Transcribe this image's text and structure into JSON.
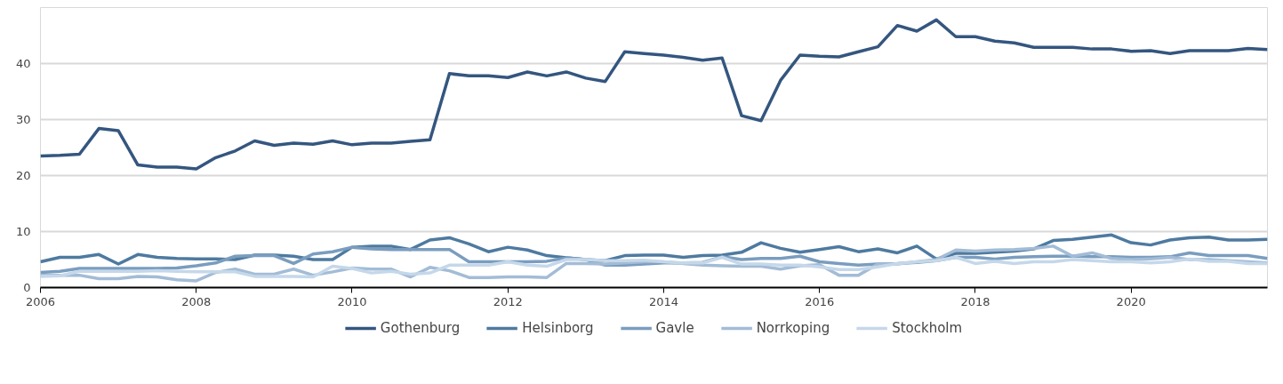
{
  "chart_data": {
    "type": "line",
    "x": [
      2006,
      2006.25,
      2006.5,
      2006.75,
      2007,
      2007.25,
      2007.5,
      2007.75,
      2008,
      2008.25,
      2008.5,
      2008.75,
      2009,
      2009.25,
      2009.5,
      2009.75,
      2010,
      2010.25,
      2010.5,
      2010.75,
      2011,
      2011.25,
      2011.5,
      2011.75,
      2012,
      2012.25,
      2012.5,
      2012.75,
      2013,
      2013.25,
      2013.5,
      2013.75,
      2014,
      2014.25,
      2014.5,
      2014.75,
      2015,
      2015.25,
      2015.5,
      2015.75,
      2016,
      2016.25,
      2016.5,
      2016.75,
      2017,
      2017.25,
      2017.5,
      2017.75,
      2018,
      2018.25,
      2018.5,
      2018.75,
      2019,
      2019.25,
      2019.5,
      2019.75,
      2020,
      2020.25,
      2020.5,
      2020.75,
      2021,
      2021.25,
      2021.5,
      2021.75
    ],
    "series": [
      {
        "name": "Gothenburg",
        "color": "#34567f",
        "values": [
          23.5,
          23.6,
          23.8,
          28.4,
          28.0,
          21.9,
          21.5,
          21.5,
          21.2,
          23.2,
          24.4,
          26.2,
          25.4,
          25.8,
          25.6,
          26.2,
          25.5,
          25.8,
          25.8,
          26.1,
          26.4,
          38.2,
          37.8,
          37.8,
          37.5,
          38.5,
          37.8,
          38.5,
          37.4,
          36.8,
          42.1,
          41.8,
          41.5,
          41.1,
          40.6,
          41.0,
          30.7,
          29.8,
          37.0,
          41.5,
          41.3,
          41.2,
          42.1,
          43.0,
          46.8,
          45.8,
          47.8,
          44.8,
          44.8,
          44.0,
          43.7,
          42.9,
          42.9,
          42.9,
          42.6,
          42.6,
          42.2,
          42.3,
          41.8,
          42.3,
          42.3,
          42.3,
          42.7,
          42.5
        ]
      },
      {
        "name": "Helsinborg",
        "color": "#4e7aa0",
        "values": [
          4.6,
          5.4,
          5.4,
          5.9,
          4.2,
          5.9,
          5.4,
          5.2,
          5.1,
          5.1,
          5.0,
          5.8,
          5.8,
          5.6,
          5.0,
          5.0,
          7.2,
          7.4,
          7.4,
          6.8,
          8.5,
          8.9,
          7.8,
          6.4,
          7.2,
          6.7,
          5.7,
          5.3,
          5.0,
          4.8,
          5.7,
          5.8,
          5.8,
          5.4,
          5.7,
          5.8,
          6.3,
          8.0,
          7.0,
          6.3,
          6.8,
          7.3,
          6.4,
          6.9,
          6.2,
          7.4,
          5.1,
          6.1,
          6.1,
          6.3,
          6.5,
          6.9,
          8.4,
          8.6,
          9.0,
          9.4,
          8.0,
          7.6,
          8.5,
          8.9,
          9.0,
          8.5,
          8.5,
          8.6
        ]
      },
      {
        "name": "Gavle",
        "color": "#7a9dbf",
        "values": [
          2.7,
          2.9,
          3.4,
          3.4,
          3.4,
          3.4,
          3.4,
          3.5,
          3.9,
          4.4,
          5.6,
          5.7,
          5.7,
          4.3,
          6.0,
          6.4,
          7.2,
          6.9,
          6.8,
          6.8,
          6.8,
          6.8,
          4.6,
          4.6,
          4.6,
          4.6,
          4.7,
          5.3,
          5.0,
          4.0,
          4.0,
          4.2,
          4.4,
          4.4,
          4.5,
          5.5,
          5.0,
          5.2,
          5.2,
          5.6,
          4.6,
          4.3,
          4.0,
          4.2,
          4.3,
          4.5,
          4.8,
          5.4,
          5.4,
          5.1,
          5.4,
          5.5,
          5.6,
          5.6,
          5.5,
          5.5,
          5.4,
          5.4,
          5.5,
          6.2,
          5.7,
          5.7,
          5.7,
          5.2
        ]
      },
      {
        "name": "Norrkoping",
        "color": "#a3bcd6",
        "values": [
          2.2,
          2.2,
          2.2,
          1.6,
          1.6,
          2.0,
          1.9,
          1.4,
          1.2,
          2.7,
          3.3,
          2.4,
          2.4,
          3.3,
          2.2,
          2.8,
          3.5,
          3.3,
          3.3,
          1.9,
          3.6,
          3.0,
          1.8,
          1.8,
          1.9,
          1.9,
          1.8,
          4.3,
          4.3,
          4.2,
          4.4,
          4.6,
          4.6,
          4.3,
          4.0,
          3.9,
          3.8,
          3.8,
          3.3,
          3.9,
          4.1,
          2.2,
          2.2,
          4.2,
          4.2,
          4.6,
          5.0,
          6.7,
          6.5,
          6.7,
          6.8,
          7.0,
          7.4,
          5.6,
          6.2,
          5.2,
          5.0,
          5.1,
          5.4,
          5.0,
          5.0,
          4.8,
          4.6,
          4.4
        ]
      },
      {
        "name": "Stockholm",
        "color": "#c5d8ea",
        "values": [
          2.0,
          2.1,
          2.9,
          2.9,
          2.9,
          2.9,
          3.0,
          2.9,
          2.8,
          2.8,
          2.8,
          2.0,
          2.0,
          2.0,
          1.9,
          3.8,
          3.4,
          2.6,
          2.9,
          2.4,
          2.6,
          4.0,
          4.0,
          4.0,
          4.6,
          4.0,
          3.8,
          5.0,
          5.0,
          4.8,
          4.8,
          4.9,
          4.6,
          4.4,
          4.4,
          5.4,
          4.2,
          4.2,
          4.0,
          4.0,
          3.7,
          3.2,
          3.2,
          3.7,
          4.3,
          4.6,
          4.8,
          5.4,
          4.3,
          4.7,
          4.3,
          4.6,
          4.6,
          5.0,
          4.8,
          4.6,
          4.6,
          4.4,
          4.6,
          5.1,
          4.7,
          4.7,
          4.3,
          4.3
        ]
      }
    ],
    "xlim": [
      2006,
      2021.75
    ],
    "xticks": [
      2006,
      2008,
      2010,
      2012,
      2014,
      2016,
      2018,
      2020
    ],
    "ylim": [
      0,
      50
    ],
    "yticks": [
      0,
      10,
      20,
      30,
      40
    ],
    "grid": "y",
    "legend": "bottom"
  }
}
